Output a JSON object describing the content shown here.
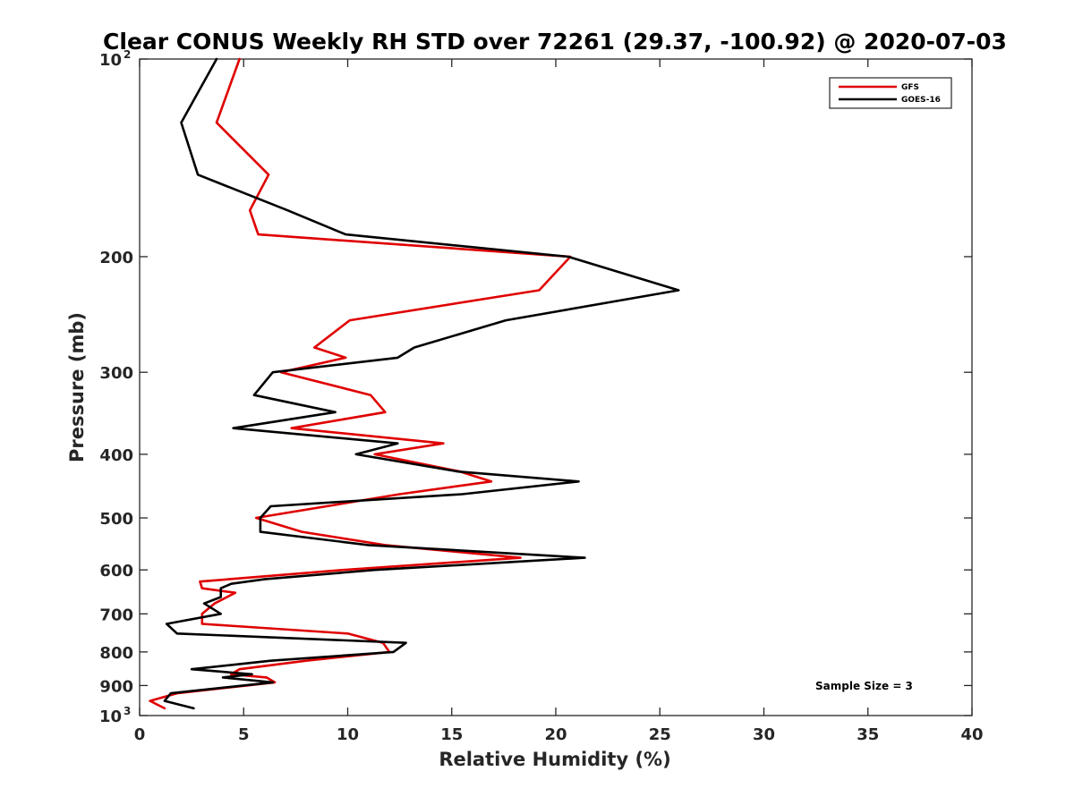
{
  "chart_data": {
    "type": "line",
    "title": "Clear CONUS Weekly RH STD over 72261 (29.37, -100.92) @ 2020-07-03",
    "xlabel": "Relative Humidity (%)",
    "ylabel": "Pressure (mb)",
    "xlim": [
      0,
      40
    ],
    "ylim": [
      100,
      1000
    ],
    "y_scale": "log",
    "y_reversed": true,
    "x_ticks": [
      0,
      5,
      10,
      15,
      20,
      25,
      30,
      35,
      40
    ],
    "y_ticks": [
      {
        "value": 100,
        "label": "10",
        "sup": "2"
      },
      {
        "value": 200,
        "label": "200"
      },
      {
        "value": 300,
        "label": "300"
      },
      {
        "value": 400,
        "label": "400"
      },
      {
        "value": 500,
        "label": "500"
      },
      {
        "value": 600,
        "label": "600"
      },
      {
        "value": 700,
        "label": "700"
      },
      {
        "value": 800,
        "label": "800"
      },
      {
        "value": 900,
        "label": "900"
      },
      {
        "value": 1000,
        "label": "10",
        "sup": "3"
      }
    ],
    "grid": false,
    "legend_position": "top-right",
    "annotation": "Sample Size = 3",
    "series": [
      {
        "name": "GFS",
        "color": "#e00000",
        "points": [
          [
            4.8,
            100
          ],
          [
            3.7,
            125
          ],
          [
            6.2,
            150
          ],
          [
            5.3,
            170
          ],
          [
            5.7,
            185
          ],
          [
            20.7,
            200
          ],
          [
            19.2,
            225
          ],
          [
            10.1,
            250
          ],
          [
            8.4,
            275
          ],
          [
            9.9,
            285
          ],
          [
            6.8,
            300
          ],
          [
            11.1,
            325
          ],
          [
            11.8,
            345
          ],
          [
            7.3,
            365
          ],
          [
            14.6,
            385
          ],
          [
            11.3,
            400
          ],
          [
            15.4,
            425
          ],
          [
            16.9,
            440
          ],
          [
            12.5,
            460
          ],
          [
            5.6,
            500
          ],
          [
            7.8,
            525
          ],
          [
            11.8,
            550
          ],
          [
            18.3,
            575
          ],
          [
            9.8,
            600
          ],
          [
            2.9,
            625
          ],
          [
            3.0,
            640
          ],
          [
            4.6,
            650
          ],
          [
            3.6,
            675
          ],
          [
            3.0,
            700
          ],
          [
            3.0,
            725
          ],
          [
            10.0,
            750
          ],
          [
            11.7,
            775
          ],
          [
            12.0,
            800
          ],
          [
            8.0,
            825
          ],
          [
            4.8,
            850
          ],
          [
            4.4,
            865
          ],
          [
            6.1,
            875
          ],
          [
            6.5,
            890
          ],
          [
            1.8,
            925
          ],
          [
            0.5,
            950
          ],
          [
            1.2,
            975
          ]
        ]
      },
      {
        "name": "GOES-16",
        "color": "#000000",
        "points": [
          [
            3.7,
            100
          ],
          [
            2.0,
            125
          ],
          [
            2.8,
            150
          ],
          [
            7.1,
            170
          ],
          [
            9.9,
            185
          ],
          [
            20.6,
            200
          ],
          [
            25.9,
            225
          ],
          [
            17.6,
            250
          ],
          [
            13.2,
            275
          ],
          [
            12.4,
            285
          ],
          [
            6.4,
            300
          ],
          [
            5.5,
            325
          ],
          [
            9.4,
            345
          ],
          [
            4.5,
            365
          ],
          [
            12.4,
            385
          ],
          [
            10.4,
            400
          ],
          [
            15.3,
            425
          ],
          [
            21.1,
            440
          ],
          [
            15.5,
            460
          ],
          [
            6.3,
            480
          ],
          [
            5.8,
            500
          ],
          [
            5.8,
            525
          ],
          [
            11.0,
            550
          ],
          [
            21.4,
            575
          ],
          [
            11.3,
            600
          ],
          [
            6.0,
            620
          ],
          [
            4.4,
            630
          ],
          [
            3.9,
            640
          ],
          [
            3.9,
            660
          ],
          [
            3.1,
            675
          ],
          [
            3.9,
            700
          ],
          [
            1.3,
            725
          ],
          [
            1.8,
            750
          ],
          [
            12.8,
            775
          ],
          [
            12.2,
            800
          ],
          [
            6.3,
            825
          ],
          [
            2.5,
            850
          ],
          [
            5.4,
            865
          ],
          [
            4.0,
            875
          ],
          [
            6.4,
            890
          ],
          [
            1.5,
            925
          ],
          [
            1.2,
            950
          ],
          [
            2.6,
            975
          ]
        ]
      }
    ]
  }
}
